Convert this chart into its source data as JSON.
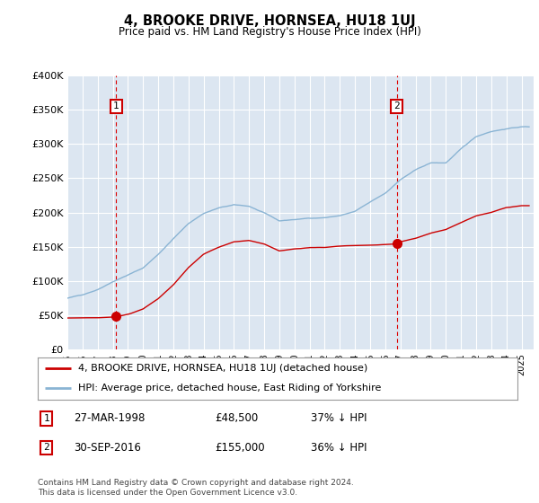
{
  "title": "4, BROOKE DRIVE, HORNSEA, HU18 1UJ",
  "subtitle": "Price paid vs. HM Land Registry's House Price Index (HPI)",
  "plot_bg": "#dce6f1",
  "line_color_red": "#cc0000",
  "line_color_blue": "#8ab4d4",
  "ymin": 0,
  "ymax": 400000,
  "yticks": [
    0,
    50000,
    100000,
    150000,
    200000,
    250000,
    300000,
    350000,
    400000
  ],
  "ytick_labels": [
    "£0",
    "£50K",
    "£100K",
    "£150K",
    "£200K",
    "£250K",
    "£300K",
    "£350K",
    "£400K"
  ],
  "xmin": 1995.0,
  "xmax": 2025.8,
  "xtick_years": [
    1995,
    1996,
    1997,
    1998,
    1999,
    2000,
    2001,
    2002,
    2003,
    2004,
    2005,
    2006,
    2007,
    2008,
    2009,
    2010,
    2011,
    2012,
    2013,
    2014,
    2015,
    2016,
    2017,
    2018,
    2019,
    2020,
    2021,
    2022,
    2023,
    2024,
    2025
  ],
  "transaction1_x": 1998.23,
  "transaction1_y": 48500,
  "transaction1_label": "1",
  "transaction1_date": "27-MAR-1998",
  "transaction1_price": "£48,500",
  "transaction1_hpi": "37% ↓ HPI",
  "transaction2_x": 2016.75,
  "transaction2_y": 155000,
  "transaction2_label": "2",
  "transaction2_date": "30-SEP-2016",
  "transaction2_price": "£155,000",
  "transaction2_hpi": "36% ↓ HPI",
  "legend_line1": "4, BROOKE DRIVE, HORNSEA, HU18 1UJ (detached house)",
  "legend_line2": "HPI: Average price, detached house, East Riding of Yorkshire",
  "footnote": "Contains HM Land Registry data © Crown copyright and database right 2024.\nThis data is licensed under the Open Government Licence v3.0."
}
